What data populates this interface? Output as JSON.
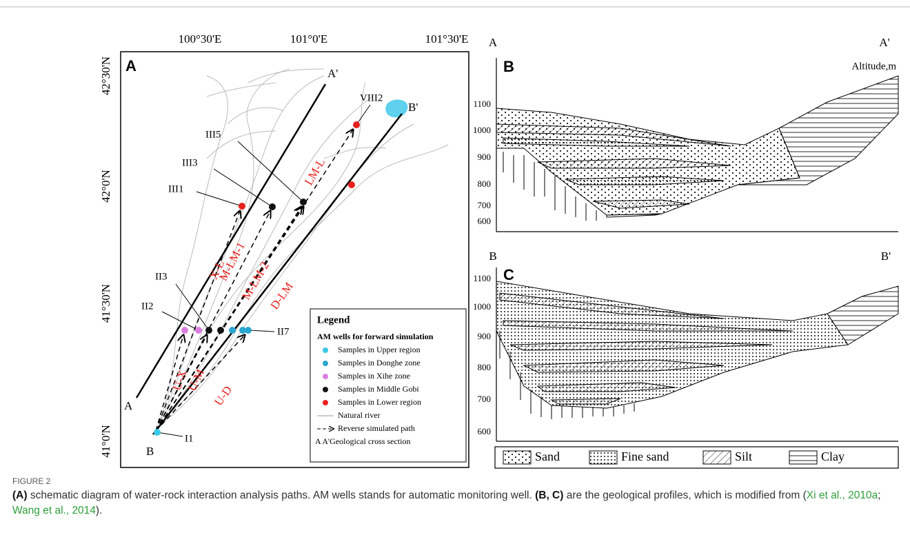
{
  "panel_a": {
    "letter": "A",
    "longitude_labels": [
      "100°30'E",
      "101°0'E",
      "101°30'E"
    ],
    "latitude_labels": [
      "42°30'N",
      "42°0'N",
      "41°30'N",
      "41°0'N"
    ],
    "section_ends": [
      "A",
      "A'",
      "B",
      "B'"
    ],
    "wells": [
      "VIII2",
      "III5",
      "III3",
      "III1",
      "II3",
      "II2",
      "II7",
      "I1"
    ],
    "paths": [
      "LM-L",
      "X-L",
      "M-LM-1",
      "M-LM-2",
      "D-LM",
      "U-X",
      "U-M",
      "U-D"
    ],
    "legend": {
      "title": "Legend",
      "subtitle": "AM wells for forward simulation",
      "items": [
        "Samples in Upper region",
        "Samples in Donghe zone",
        "Samples in Xihe zone",
        "Samples in Middle Gobi",
        "Samples in Lower region",
        "Natural river",
        "Reverse simulated path"
      ],
      "section": "A  A'Geological cross section"
    }
  },
  "panel_b": {
    "letter": "B",
    "left_end": "A",
    "right_end": "A'",
    "axis_title": "Altitude,m",
    "ticks": [
      "1100",
      "1000",
      "900",
      "800",
      "700",
      "600"
    ]
  },
  "panel_c": {
    "letter": "C",
    "left_end": "B",
    "right_end": "B'",
    "ticks": [
      "1100",
      "1000",
      "900",
      "800",
      "700",
      "600"
    ]
  },
  "lithology_legend": [
    "Sand",
    "Fine sand",
    "Silt",
    "Clay"
  ],
  "caption": {
    "label": "FIGURE 2",
    "parts": [
      "(A)",
      " schematic diagram of water-rock interaction analysis paths. AM wells stands for automatic monitoring well. ",
      "(B, C)",
      " are the geological profiles, which is modified from (",
      "Xi et al., 2010a",
      "; ",
      "Wang et al., 2014",
      ")."
    ]
  }
}
